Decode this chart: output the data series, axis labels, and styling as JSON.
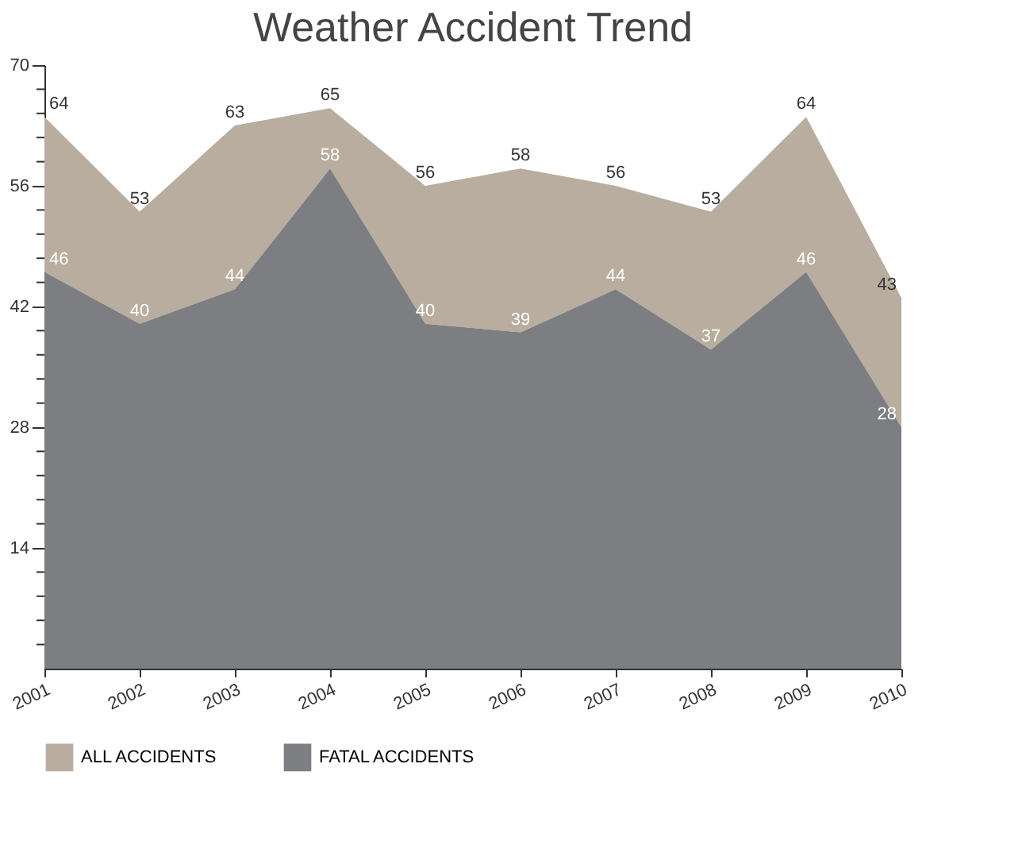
{
  "chart_data": {
    "type": "area",
    "title": "Weather Accident Trend",
    "categories": [
      "2001",
      "2002",
      "2003",
      "2004",
      "2005",
      "2006",
      "2007",
      "2008",
      "2009",
      "2010"
    ],
    "series": [
      {
        "name": "ALL ACCIDENTS",
        "color": "#b8ad9e",
        "values": [
          64,
          53,
          63,
          65,
          56,
          58,
          56,
          53,
          64,
          43
        ]
      },
      {
        "name": "FATAL ACCIDENTS",
        "color": "#7d7e82",
        "values": [
          46,
          40,
          44,
          58,
          40,
          39,
          44,
          37,
          46,
          28
        ]
      }
    ],
    "ylim": [
      0,
      70
    ],
    "yticks": [
      {
        "value": 2.8,
        "label": null
      },
      {
        "value": 5.6,
        "label": null
      },
      {
        "value": 8.4,
        "label": null
      },
      {
        "value": 11.2,
        "label": null
      },
      14,
      {
        "value": 16.8,
        "label": null
      },
      {
        "value": 19.6,
        "label": null
      },
      {
        "value": 22.4,
        "label": null
      },
      {
        "value": 25.2,
        "label": null
      },
      28,
      {
        "value": 30.8,
        "label": null
      },
      {
        "value": 33.6,
        "label": null
      },
      {
        "value": 36.4,
        "label": null
      },
      {
        "value": 39.2,
        "label": null
      },
      42,
      {
        "value": 44.8,
        "label": null
      },
      {
        "value": 47.6,
        "label": null
      },
      {
        "value": 50.4,
        "label": null
      },
      {
        "value": 53.2,
        "label": null
      },
      56,
      {
        "value": 58.8,
        "label": null
      },
      {
        "value": 61.6,
        "label": null
      },
      {
        "value": 64.4,
        "label": null
      },
      {
        "value": 67.2,
        "label": null
      },
      70
    ],
    "data_labels": true,
    "legend": "bottom",
    "grid": false
  }
}
